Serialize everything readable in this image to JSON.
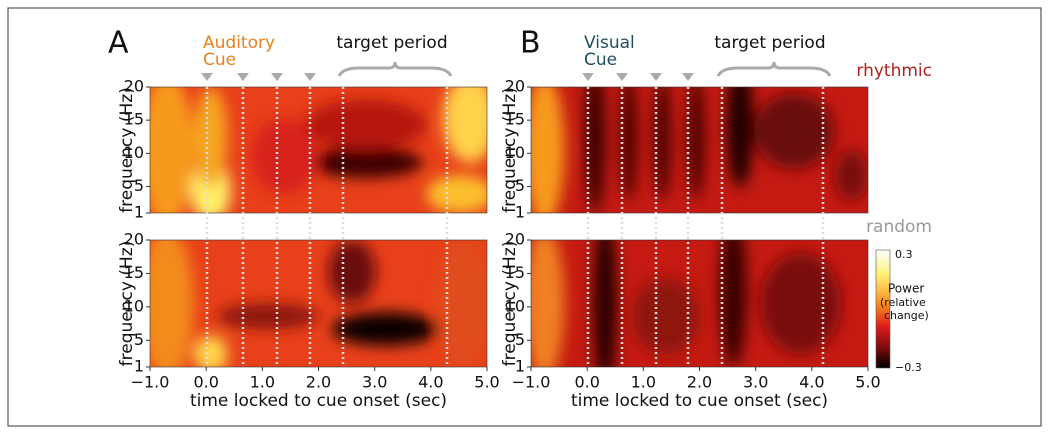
{
  "panels": [
    {
      "letter": "A",
      "cue": [
        "Auditory",
        "Cue"
      ],
      "target": "target period",
      "y_label": "frequency (Hz)",
      "x_label": "time locked to cue onset (sec)"
    },
    {
      "letter": "B",
      "cue": [
        "Visual",
        "Cue"
      ],
      "target": "target period",
      "y_label": "frequency (Hz)",
      "x_label": "time locked to cue onset (sec)"
    }
  ],
  "row_labels": [
    "rhythmic",
    "random"
  ],
  "axes": {
    "xlim": [
      -1,
      5
    ],
    "ylim": [
      1,
      20
    ],
    "xticks": [
      {
        "value": -1,
        "label": "−1.0"
      },
      {
        "value": 0,
        "label": "0.0"
      },
      {
        "value": 1,
        "label": "1.0"
      },
      {
        "value": 2,
        "label": "2.0"
      },
      {
        "value": 3,
        "label": "3.0"
      },
      {
        "value": 4,
        "label": "4.0"
      },
      {
        "value": 5,
        "label": "5.0"
      }
    ],
    "yticks": [
      1,
      5,
      10,
      15,
      20
    ]
  },
  "colorbar": {
    "max": "0.3",
    "title": "Power",
    "subtitle": [
      "(relative",
      "change)"
    ],
    "min": "−0.3"
  }
}
